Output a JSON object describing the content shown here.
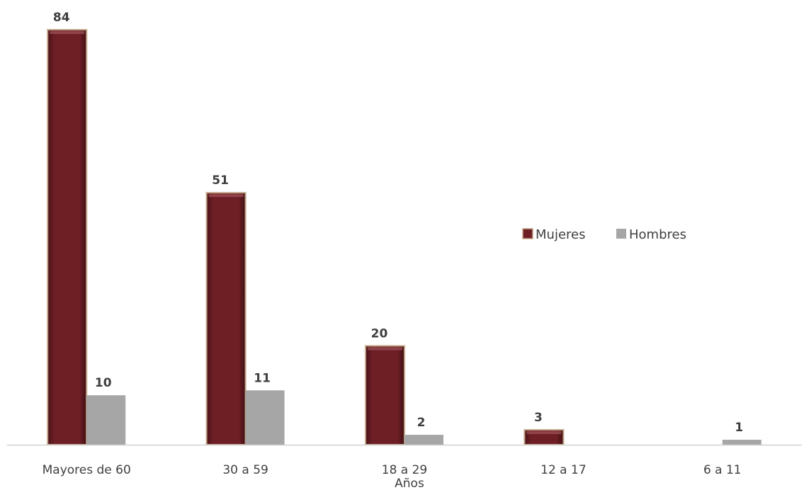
{
  "chart_data": {
    "type": "bar",
    "categories": [
      "Mayores de 60",
      "30 a 59",
      "18 a 29",
      "12 a 17",
      "6 a 11"
    ],
    "series": [
      {
        "name": "Mujeres",
        "values": [
          84,
          51,
          20,
          3,
          null
        ]
      },
      {
        "name": "Hombres",
        "values": [
          10,
          11,
          2,
          null,
          1
        ]
      }
    ],
    "xlabel": "Años",
    "ylabel": "",
    "ylim": [
      0,
      84
    ],
    "grid": false,
    "legend": "right",
    "colors": {
      "Mujeres": "#6e1f26",
      "Mujeres_border": "#c2a487",
      "Hombres": "#a6a6a6",
      "axis": "#d0d0d0",
      "text": "#3f3f3f"
    }
  }
}
